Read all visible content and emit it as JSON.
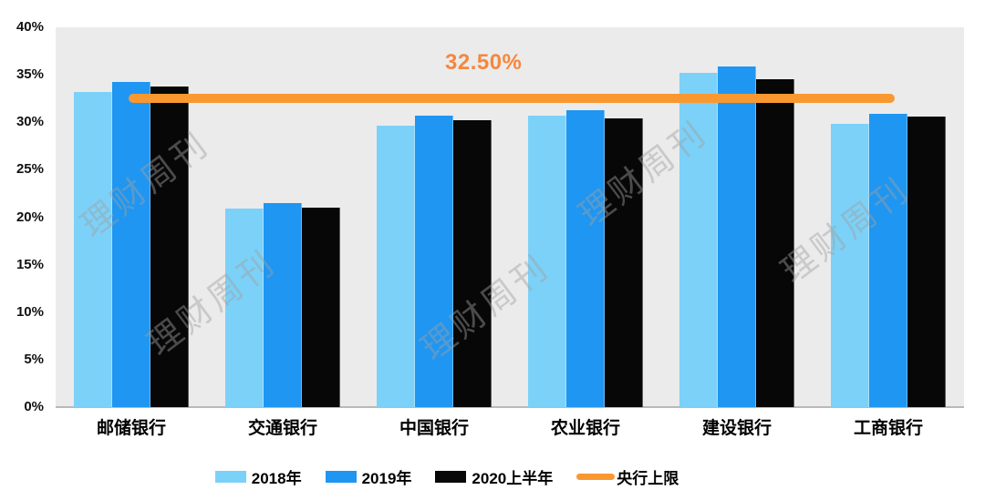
{
  "watermark": {
    "text": "理财周刊",
    "color": "rgba(160,160,160,0.45)"
  },
  "chart_data": {
    "type": "bar",
    "title": "",
    "xlabel": "",
    "ylabel": "",
    "categories": [
      "邮储银行",
      "交通银行",
      "中国银行",
      "农业银行",
      "建设银行",
      "工商银行"
    ],
    "series": [
      {
        "name": "2018年",
        "color": "#7CD1F8",
        "values": [
          33.2,
          20.9,
          29.6,
          30.7,
          35.2,
          29.8
        ]
      },
      {
        "name": "2019年",
        "color": "#1E96F2",
        "values": [
          34.2,
          21.5,
          30.7,
          31.3,
          35.9,
          30.9
        ]
      },
      {
        "name": "2020上半年",
        "color": "#070707",
        "values": [
          33.8,
          21.0,
          30.2,
          30.4,
          34.5,
          30.6
        ]
      }
    ],
    "line_series": {
      "name": "央行上限",
      "color": "#F99831",
      "value": 32.5,
      "label": "32.50%",
      "label_color": "#F6873E"
    },
    "ylim": [
      0,
      40
    ],
    "yticks": [
      {
        "value": 0,
        "label": "0%"
      },
      {
        "value": 5,
        "label": "5%"
      },
      {
        "value": 10,
        "label": "10%"
      },
      {
        "value": 15,
        "label": "15%"
      },
      {
        "value": 20,
        "label": "20%"
      },
      {
        "value": 25,
        "label": "25%"
      },
      {
        "value": 30,
        "label": "30%"
      },
      {
        "value": 35,
        "label": "35%"
      },
      {
        "value": 40,
        "label": "40%"
      }
    ],
    "grid": false,
    "legend_position": "bottom",
    "plot_bg": "#EBEBEB"
  }
}
